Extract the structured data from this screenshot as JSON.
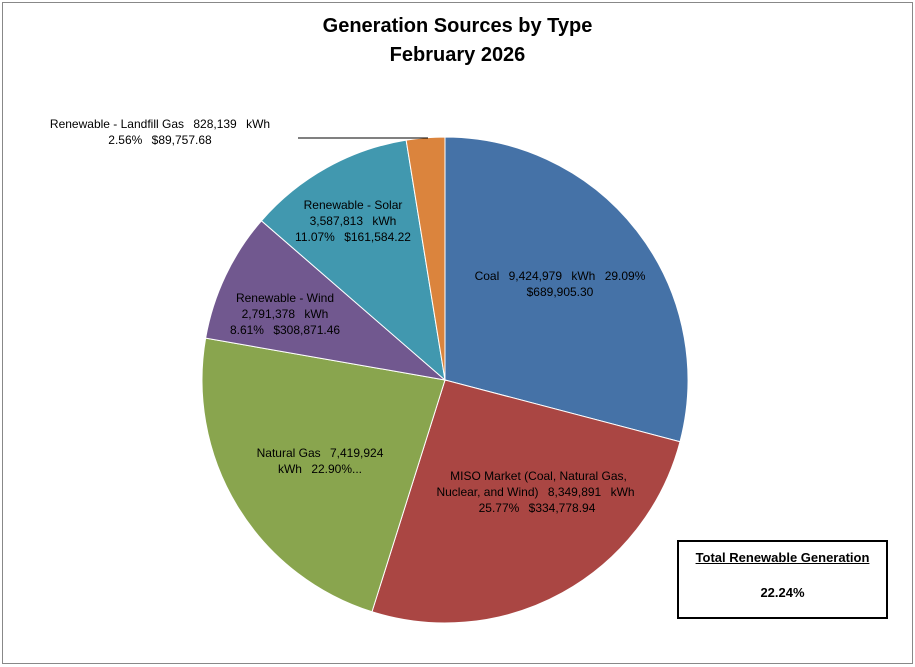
{
  "chart_data": {
    "type": "pie",
    "title": "Generation Sources by Type",
    "subtitle": "February 2026",
    "unit": "kWh",
    "categories": [
      "Coal",
      "MISO Market (Coal, Natural Gas, Nuclear, and Wind)",
      "Natural Gas",
      "Renewable - Wind",
      "Renewable - Solar",
      "Renewable - Landfill Gas"
    ],
    "values": [
      9424979,
      8349891,
      7419924,
      2791378,
      3587813,
      828139
    ],
    "value_labels": [
      "9,424,979",
      "8,349,891",
      "7,419,924",
      "2,791,378",
      "3,587,813",
      "828,139"
    ],
    "percents": [
      {
        "value": 29.09,
        "label": "29.09%"
      },
      {
        "value": 25.77,
        "label": "25.77%"
      },
      {
        "value": 22.9,
        "label": "22.90%..."
      },
      {
        "value": 8.61,
        "label": "8.61%"
      },
      {
        "value": 11.07,
        "label": "11.07%"
      },
      {
        "value": 2.56,
        "label": "2.56%"
      }
    ],
    "costs": [
      {
        "value": 689905.3,
        "label": "$689,905.30"
      },
      {
        "value": 334778.94,
        "label": "$334,778.94"
      },
      null,
      {
        "value": 308871.46,
        "label": "$308,871.46"
      },
      {
        "value": 161584.22,
        "label": "$161,584.22"
      },
      {
        "value": 89757.68,
        "label": "$89,757.68"
      }
    ],
    "colors": [
      "#4572a7",
      "#aa4643",
      "#89a54e",
      "#71588f",
      "#4198af",
      "#db843d"
    ],
    "summary": {
      "title": "Total Renewable Generation",
      "value": {
        "value": 22.24,
        "label": "22.24%"
      }
    }
  }
}
